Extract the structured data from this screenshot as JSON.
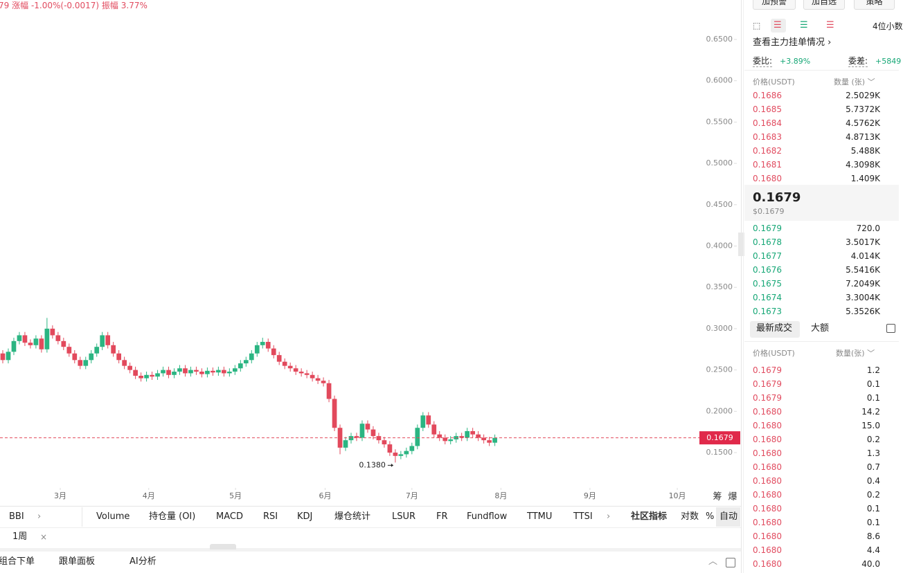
{
  "header": {
    "price": "79",
    "change_label": "涨幅",
    "change": "-1.00%(-0.0017)",
    "amplitude_label": "振幅",
    "amplitude": "3.77%"
  },
  "chart_data": {
    "type": "candlestick",
    "candles": [
      [
        0.27,
        0.274,
        0.258,
        0.262
      ],
      [
        0.262,
        0.276,
        0.258,
        0.272
      ],
      [
        0.272,
        0.289,
        0.268,
        0.285
      ],
      [
        0.285,
        0.296,
        0.281,
        0.292
      ],
      [
        0.292,
        0.296,
        0.279,
        0.283
      ],
      [
        0.283,
        0.287,
        0.276,
        0.28
      ],
      [
        0.28,
        0.292,
        0.276,
        0.288
      ],
      [
        0.288,
        0.292,
        0.271,
        0.275
      ],
      [
        0.275,
        0.313,
        0.271,
        0.3
      ],
      [
        0.3,
        0.304,
        0.288,
        0.292
      ],
      [
        0.292,
        0.296,
        0.281,
        0.285
      ],
      [
        0.285,
        0.289,
        0.274,
        0.278
      ],
      [
        0.278,
        0.282,
        0.266,
        0.27
      ],
      [
        0.27,
        0.274,
        0.258,
        0.262
      ],
      [
        0.262,
        0.266,
        0.251,
        0.255
      ],
      [
        0.255,
        0.266,
        0.251,
        0.262
      ],
      [
        0.262,
        0.274,
        0.258,
        0.27
      ],
      [
        0.27,
        0.282,
        0.266,
        0.278
      ],
      [
        0.278,
        0.296,
        0.274,
        0.292
      ],
      [
        0.292,
        0.296,
        0.276,
        0.28
      ],
      [
        0.28,
        0.284,
        0.266,
        0.27
      ],
      [
        0.27,
        0.274,
        0.258,
        0.262
      ],
      [
        0.262,
        0.266,
        0.251,
        0.255
      ],
      [
        0.255,
        0.259,
        0.246,
        0.25
      ],
      [
        0.25,
        0.254,
        0.239,
        0.243
      ],
      [
        0.243,
        0.247,
        0.236,
        0.24
      ],
      [
        0.24,
        0.248,
        0.236,
        0.244
      ],
      [
        0.244,
        0.248,
        0.238,
        0.242
      ],
      [
        0.242,
        0.25,
        0.238,
        0.246
      ],
      [
        0.246,
        0.254,
        0.242,
        0.25
      ],
      [
        0.25,
        0.254,
        0.24,
        0.244
      ],
      [
        0.244,
        0.252,
        0.24,
        0.248
      ],
      [
        0.248,
        0.256,
        0.244,
        0.252
      ],
      [
        0.252,
        0.256,
        0.242,
        0.246
      ],
      [
        0.246,
        0.254,
        0.242,
        0.25
      ],
      [
        0.25,
        0.254,
        0.244,
        0.248
      ],
      [
        0.248,
        0.252,
        0.241,
        0.245
      ],
      [
        0.245,
        0.253,
        0.241,
        0.249
      ],
      [
        0.249,
        0.253,
        0.243,
        0.247
      ],
      [
        0.247,
        0.254,
        0.243,
        0.25
      ],
      [
        0.25,
        0.254,
        0.242,
        0.246
      ],
      [
        0.246,
        0.252,
        0.242,
        0.248
      ],
      [
        0.248,
        0.256,
        0.244,
        0.252
      ],
      [
        0.252,
        0.262,
        0.248,
        0.258
      ],
      [
        0.258,
        0.266,
        0.254,
        0.262
      ],
      [
        0.262,
        0.274,
        0.258,
        0.27
      ],
      [
        0.27,
        0.284,
        0.266,
        0.28
      ],
      [
        0.28,
        0.289,
        0.276,
        0.284
      ],
      [
        0.284,
        0.288,
        0.272,
        0.276
      ],
      [
        0.276,
        0.28,
        0.264,
        0.268
      ],
      [
        0.268,
        0.272,
        0.256,
        0.26
      ],
      [
        0.26,
        0.264,
        0.251,
        0.255
      ],
      [
        0.255,
        0.259,
        0.248,
        0.252
      ],
      [
        0.252,
        0.256,
        0.244,
        0.248
      ],
      [
        0.248,
        0.252,
        0.242,
        0.246
      ],
      [
        0.246,
        0.25,
        0.24,
        0.244
      ],
      [
        0.244,
        0.248,
        0.236,
        0.24
      ],
      [
        0.24,
        0.244,
        0.233,
        0.237
      ],
      [
        0.237,
        0.241,
        0.23,
        0.234
      ],
      [
        0.234,
        0.238,
        0.211,
        0.215
      ],
      [
        0.215,
        0.219,
        0.176,
        0.18
      ],
      [
        0.18,
        0.184,
        0.148,
        0.156
      ],
      [
        0.156,
        0.169,
        0.152,
        0.165
      ],
      [
        0.165,
        0.174,
        0.161,
        0.17
      ],
      [
        0.17,
        0.174,
        0.164,
        0.168
      ],
      [
        0.168,
        0.189,
        0.164,
        0.185
      ],
      [
        0.185,
        0.189,
        0.174,
        0.178
      ],
      [
        0.178,
        0.182,
        0.166,
        0.17
      ],
      [
        0.17,
        0.174,
        0.161,
        0.165
      ],
      [
        0.165,
        0.169,
        0.156,
        0.16
      ],
      [
        0.16,
        0.164,
        0.146,
        0.15
      ],
      [
        0.15,
        0.154,
        0.138,
        0.146
      ],
      [
        0.146,
        0.152,
        0.142,
        0.148
      ],
      [
        0.148,
        0.156,
        0.144,
        0.152
      ],
      [
        0.152,
        0.162,
        0.148,
        0.158
      ],
      [
        0.158,
        0.184,
        0.154,
        0.18
      ],
      [
        0.18,
        0.199,
        0.176,
        0.195
      ],
      [
        0.195,
        0.199,
        0.18,
        0.184
      ],
      [
        0.184,
        0.188,
        0.168,
        0.172
      ],
      [
        0.172,
        0.176,
        0.164,
        0.168
      ],
      [
        0.168,
        0.172,
        0.16,
        0.164
      ],
      [
        0.164,
        0.17,
        0.16,
        0.166
      ],
      [
        0.166,
        0.174,
        0.162,
        0.17
      ],
      [
        0.17,
        0.174,
        0.164,
        0.168
      ],
      [
        0.168,
        0.18,
        0.164,
        0.176
      ],
      [
        0.176,
        0.18,
        0.168,
        0.172
      ],
      [
        0.172,
        0.176,
        0.164,
        0.168
      ],
      [
        0.168,
        0.172,
        0.161,
        0.165
      ],
      [
        0.165,
        0.169,
        0.158,
        0.162
      ],
      [
        0.162,
        0.1719,
        0.158,
        0.1679
      ]
    ],
    "colors": {
      "up": "#2bb582",
      "down": "#e2495c"
    },
    "xlim": [
      -0.25,
      126
    ],
    "xticks": [
      {
        "value": 10.4,
        "label": "3月"
      },
      {
        "value": 26.4,
        "label": "4月"
      },
      {
        "value": 42.1,
        "label": "5月"
      },
      {
        "value": 58.3,
        "label": "6月"
      },
      {
        "value": 74,
        "label": "7月"
      },
      {
        "value": 90.1,
        "label": "8月"
      },
      {
        "value": 106.2,
        "label": "9月"
      },
      {
        "value": 122,
        "label": "10月"
      }
    ],
    "ylim": [
      0.109,
      0.6977
    ],
    "yticks": [
      {
        "value": 0.65,
        "label": "0.6500"
      },
      {
        "value": 0.6,
        "label": "0.6000"
      },
      {
        "value": 0.55,
        "label": "0.5500"
      },
      {
        "value": 0.5,
        "label": "0.5000"
      },
      {
        "value": 0.45,
        "label": "0.4500"
      },
      {
        "value": 0.4,
        "label": "0.4000"
      },
      {
        "value": 0.35,
        "label": "0.3500"
      },
      {
        "value": 0.3,
        "label": "0.3000"
      },
      {
        "value": 0.25,
        "label": "0.2500"
      },
      {
        "value": 0.2,
        "label": "0.2000"
      },
      {
        "value": 0.15,
        "label": "0.1500"
      }
    ],
    "grid": false,
    "last_price": {
      "value": 0.1679,
      "label": "0.1679"
    },
    "min_marker": {
      "value": 0.138,
      "label": "0.1380"
    },
    "side_labels": [
      "筹",
      "爆"
    ]
  },
  "indicators": {
    "first": "BBI",
    "tabs": [
      "Volume",
      "持仓量 (OI)",
      "MACD",
      "RSI",
      "KDJ",
      "爆仓统计",
      "LSUR",
      "FR",
      "Fundflow",
      "TTMU",
      "TTSI"
    ],
    "community": "社区指标",
    "options": [
      "对数",
      "%",
      "自动"
    ]
  },
  "period": "1周",
  "bottom_tabs": [
    "组合下单",
    "跟单面板",
    "AI分析"
  ],
  "panel": {
    "buttons": [
      "加预警",
      "加自选",
      "策略"
    ],
    "decimals": "4位小数",
    "main_orders": "查看主力挂单情况",
    "ratio_label": "委比:",
    "ratio": "+3.89%",
    "diff_label": "委差:",
    "diff": "+5849"
  },
  "order_book": {
    "price_header": "价格(USDT)",
    "qty_header": "数量 (张)",
    "asks": [
      [
        "0.1686",
        "2.5029K"
      ],
      [
        "0.1685",
        "5.7372K"
      ],
      [
        "0.1684",
        "4.5762K"
      ],
      [
        "0.1683",
        "4.8713K"
      ],
      [
        "0.1682",
        "5.488K"
      ],
      [
        "0.1681",
        "4.3098K"
      ],
      [
        "0.1680",
        "1.409K"
      ]
    ],
    "mid_price": "0.1679",
    "mid_usd": "$0.1679",
    "bids": [
      [
        "0.1679",
        "720.0"
      ],
      [
        "0.1678",
        "3.5017K"
      ],
      [
        "0.1677",
        "4.014K"
      ],
      [
        "0.1676",
        "5.5416K"
      ],
      [
        "0.1675",
        "7.2049K"
      ],
      [
        "0.1674",
        "3.3004K"
      ],
      [
        "0.1673",
        "5.3526K"
      ]
    ]
  },
  "trades": {
    "tabs": [
      "最新成交",
      "大额"
    ],
    "price_header": "价格(USDT)",
    "qty_header": "数量(张)",
    "rows": [
      [
        "0.1679",
        "1.2"
      ],
      [
        "0.1679",
        "0.1"
      ],
      [
        "0.1679",
        "0.1"
      ],
      [
        "0.1680",
        "14.2"
      ],
      [
        "0.1680",
        "15.0"
      ],
      [
        "0.1680",
        "0.2"
      ],
      [
        "0.1680",
        "1.3"
      ],
      [
        "0.1680",
        "0.7"
      ],
      [
        "0.1680",
        "0.4"
      ],
      [
        "0.1680",
        "0.2"
      ],
      [
        "0.1680",
        "0.1"
      ],
      [
        "0.1680",
        "0.1"
      ],
      [
        "0.1680",
        "8.6"
      ],
      [
        "0.1680",
        "4.4"
      ],
      [
        "0.1680",
        "40.0"
      ]
    ]
  }
}
